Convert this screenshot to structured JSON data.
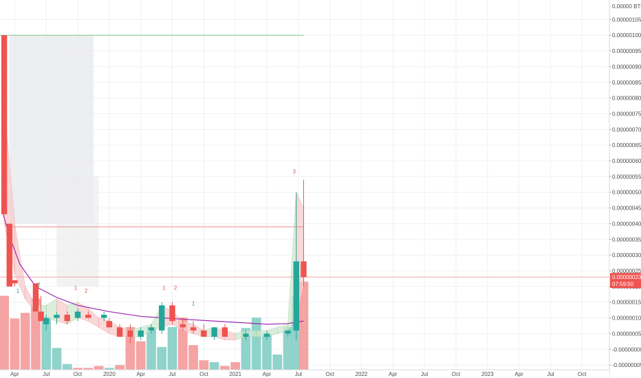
{
  "chart_data": {
    "type": "candlestick",
    "axis_header": "0.00000 BTC 10",
    "y_tick_labels": [
      {
        "value": 1.05e-06,
        "label": "0.00000105"
      },
      {
        "value": 1e-06,
        "label": "0.00000100"
      },
      {
        "value": 9.5e-07,
        "label": "0.00000095"
      },
      {
        "value": 9e-07,
        "label": "0.00000090"
      },
      {
        "value": 8.5e-07,
        "label": "0.00000085"
      },
      {
        "value": 8e-07,
        "label": "0.00000080"
      },
      {
        "value": 7.5e-07,
        "label": "0.00000075"
      },
      {
        "value": 7e-07,
        "label": "0.00000070"
      },
      {
        "value": 6.5e-07,
        "label": "0.00000065"
      },
      {
        "value": 6e-07,
        "label": "0.00000060"
      },
      {
        "value": 5.5e-07,
        "label": "0.00000055"
      },
      {
        "value": 5e-07,
        "label": "0.00000050"
      },
      {
        "value": 4.5e-07,
        "label": "0.00000045"
      },
      {
        "value": 4e-07,
        "label": "0.00000040"
      },
      {
        "value": 3.5e-07,
        "label": "0.00000035"
      },
      {
        "value": 3e-07,
        "label": "0.00000030"
      },
      {
        "value": 2.5e-07,
        "label": "0.00000025"
      },
      {
        "value": 2e-07,
        "label": "0.00000020"
      },
      {
        "value": 1.5e-07,
        "label": "0.00000015"
      },
      {
        "value": 1e-07,
        "label": "0.00000010"
      },
      {
        "value": 5e-08,
        "label": "0.00000005"
      },
      {
        "value": -0.0,
        "label": "-0.00000000"
      },
      {
        "value": -5e-08,
        "label": "-0.00000005"
      }
    ],
    "ylim": [
      -6.5e-08,
      1.112e-06
    ],
    "x_tick_labels": [
      "Apr",
      "Jul",
      "Oct",
      "2020",
      "Apr",
      "Jul",
      "Oct",
      "2021",
      "Apr",
      "Jul",
      "Oct",
      "2022",
      "Apr",
      "Jul",
      "Oct",
      "2023",
      "Apr",
      "Jul",
      "Oct"
    ],
    "x_tick_months": [
      3,
      6,
      9,
      12,
      15,
      18,
      21,
      24,
      27,
      30,
      33,
      36,
      39,
      42,
      45,
      48,
      51,
      54,
      57
    ],
    "xlim": [
      1.6,
      59.6
    ],
    "bar_period_months": 0.5,
    "candles": [
      {
        "t": 2.0,
        "o": 1e-06,
        "h": 1e-06,
        "l": 4.3e-07,
        "c": 4.3e-07
      },
      {
        "t": 2.5,
        "o": 4e-07,
        "h": 4e-07,
        "l": 2e-07,
        "c": 2e-07
      },
      {
        "t": 3.0,
        "o": 2.2e-07,
        "h": 2.2e-07,
        "l": 2e-07,
        "c": 2.1e-07
      },
      {
        "t": 5.0,
        "o": 2.1e-07,
        "h": 2.1e-07,
        "l": 1.2e-07,
        "c": 1.2e-07
      },
      {
        "t": 5.5,
        "o": 1.2e-07,
        "h": 1.7e-07,
        "l": 9e-08,
        "c": 9e-08
      },
      {
        "t": 6.0,
        "o": 8e-08,
        "h": 1.1e-07,
        "l": 6e-08,
        "c": 1e-07
      },
      {
        "t": 7.0,
        "o": 1e-07,
        "h": 1.2e-07,
        "l": 8e-08,
        "c": 1.1e-07
      },
      {
        "t": 8.0,
        "o": 1.1e-07,
        "h": 1.2e-07,
        "l": 8e-08,
        "c": 9e-08
      },
      {
        "t": 9.0,
        "o": 1e-07,
        "h": 1.3e-07,
        "l": 9e-08,
        "c": 1.2e-07
      },
      {
        "t": 10.0,
        "o": 1.1e-07,
        "h": 1.2e-07,
        "l": 1e-07,
        "c": 1e-07
      },
      {
        "t": 11.5,
        "o": 1e-07,
        "h": 1.2e-07,
        "l": 9e-08,
        "c": 1.1e-07
      },
      {
        "t": 12.0,
        "o": 9e-08,
        "h": 1e-07,
        "l": 7e-08,
        "c": 7e-08
      },
      {
        "t": 13.0,
        "o": 7e-08,
        "h": 8e-08,
        "l": 5e-08,
        "c": 4e-08
      },
      {
        "t": 14.0,
        "o": 6e-08,
        "h": 8e-08,
        "l": 2e-08,
        "c": 4e-08
      },
      {
        "t": 15.0,
        "o": 4e-08,
        "h": 7e-08,
        "l": 3e-08,
        "c": 6e-08
      },
      {
        "t": 16.0,
        "o": 6e-08,
        "h": 8e-08,
        "l": 5e-08,
        "c": 7e-08
      },
      {
        "t": 17.0,
        "o": 6e-08,
        "h": 1.5e-07,
        "l": 5e-08,
        "c": 1.4e-07
      },
      {
        "t": 18.0,
        "o": 1.4e-07,
        "h": 1.5e-07,
        "l": 8e-08,
        "c": 9e-08
      },
      {
        "t": 19.0,
        "o": 8e-08,
        "h": 1e-07,
        "l": 6e-08,
        "c": 7e-08
      },
      {
        "t": 20.0,
        "o": 7e-08,
        "h": 9e-08,
        "l": 5e-08,
        "c": 6e-08
      },
      {
        "t": 21.0,
        "o": 6e-08,
        "h": 8e-08,
        "l": 4e-08,
        "c": 4e-08
      },
      {
        "t": 22.0,
        "o": 4e-08,
        "h": 6e-08,
        "l": 3e-08,
        "c": 7e-08
      },
      {
        "t": 23.0,
        "o": 7e-08,
        "h": 8e-08,
        "l": 4e-08,
        "c": 4e-08
      },
      {
        "t": 25.0,
        "o": 4e-08,
        "h": 6e-08,
        "l": 3e-08,
        "c": 5e-08
      },
      {
        "t": 27.0,
        "o": 4e-08,
        "h": 6e-08,
        "l": 3e-08,
        "c": 5e-08
      },
      {
        "t": 29.0,
        "o": 5e-08,
        "h": 6e-08,
        "l": 4e-08,
        "c": 6e-08
      },
      {
        "t": 29.8,
        "o": 6e-08,
        "h": 5e-07,
        "l": 3e-08,
        "c": 2.8e-07
      },
      {
        "t": 30.5,
        "o": 2.8e-07,
        "h": 5.4e-07,
        "l": 2e-07,
        "c": 2.3e-07
      }
    ],
    "volume_bars": [
      {
        "t": 1.6,
        "v": 0.42,
        "color": "red"
      },
      {
        "t": 2.0,
        "v": 0.78,
        "color": "red"
      },
      {
        "t": 3.0,
        "v": 0.54,
        "color": "red"
      },
      {
        "t": 4.0,
        "v": 0.6,
        "color": "red"
      },
      {
        "t": 5.0,
        "v": 0.75,
        "color": "red"
      },
      {
        "t": 6.0,
        "v": 0.55,
        "color": "teal"
      },
      {
        "t": 7.0,
        "v": 0.23,
        "color": "teal"
      },
      {
        "t": 8.0,
        "v": 0.06,
        "color": "teal"
      },
      {
        "t": 9.0,
        "v": 0.02,
        "color": "red"
      },
      {
        "t": 10.0,
        "v": 0.02,
        "color": "red"
      },
      {
        "t": 11.0,
        "v": 0.04,
        "color": "red"
      },
      {
        "t": 12.0,
        "v": 0.02,
        "color": "teal"
      },
      {
        "t": 13.0,
        "v": 0.05,
        "color": "red"
      },
      {
        "t": 14.0,
        "v": 0.45,
        "color": "red"
      },
      {
        "t": 15.0,
        "v": 0.3,
        "color": "red"
      },
      {
        "t": 16.0,
        "v": 0.45,
        "color": "teal"
      },
      {
        "t": 17.0,
        "v": 0.24,
        "color": "teal"
      },
      {
        "t": 18.0,
        "v": 0.45,
        "color": "teal"
      },
      {
        "t": 19.0,
        "v": 0.55,
        "color": "red"
      },
      {
        "t": 20.0,
        "v": 0.26,
        "color": "red"
      },
      {
        "t": 21.0,
        "v": 0.1,
        "color": "red"
      },
      {
        "t": 22.0,
        "v": 0.08,
        "color": "teal"
      },
      {
        "t": 23.0,
        "v": 0.04,
        "color": "red"
      },
      {
        "t": 24.0,
        "v": 0.08,
        "color": "red"
      },
      {
        "t": 25.0,
        "v": 0.44,
        "color": "teal"
      },
      {
        "t": 26.0,
        "v": 0.55,
        "color": "teal"
      },
      {
        "t": 27.0,
        "v": 0.38,
        "color": "teal"
      },
      {
        "t": 28.0,
        "v": 0.16,
        "color": "teal"
      },
      {
        "t": 29.0,
        "v": 0.45,
        "color": "teal"
      },
      {
        "t": 29.8,
        "v": 0.78,
        "color": "teal"
      },
      {
        "t": 30.5,
        "v": 0.93,
        "color": "red"
      }
    ],
    "volume_max_value": 1,
    "moving_average": [
      {
        "t": 1.9,
        "v": 4.3e-07
      },
      {
        "t": 2.5,
        "v": 3.6e-07
      },
      {
        "t": 3.5,
        "v": 2.7e-07
      },
      {
        "t": 5.0,
        "v": 2e-07
      },
      {
        "t": 7.0,
        "v": 1.65e-07
      },
      {
        "t": 9.0,
        "v": 1.4e-07
      },
      {
        "t": 12.0,
        "v": 1.2e-07
      },
      {
        "t": 15.0,
        "v": 1.05e-07
      },
      {
        "t": 18.0,
        "v": 9.8e-08
      },
      {
        "t": 21.0,
        "v": 9.2e-08
      },
      {
        "t": 24.0,
        "v": 8.6e-08
      },
      {
        "t": 27.0,
        "v": 8e-08
      },
      {
        "t": 29.0,
        "v": 8.2e-08
      },
      {
        "t": 30.5,
        "v": 9e-08
      }
    ],
    "cloud_band": [
      {
        "t": 2.0,
        "a": 7.8e-07,
        "b": 4e-07
      },
      {
        "t": 3.0,
        "a": 4e-07,
        "b": 2.4e-07
      },
      {
        "t": 4.0,
        "a": 2e-07,
        "b": 1.6e-07
      },
      {
        "t": 5.0,
        "a": 1.4e-07,
        "b": 1.2e-07
      },
      {
        "t": 6.0,
        "a": 1.4e-07,
        "b": 1e-07
      },
      {
        "t": 7.0,
        "a": 1.6e-07,
        "b": 9e-08
      },
      {
        "t": 8.0,
        "a": 1.4e-07,
        "b": 8e-08
      },
      {
        "t": 9.0,
        "a": 1.5e-07,
        "b": 1e-07
      },
      {
        "t": 10.0,
        "a": 1.3e-07,
        "b": 9e-08
      },
      {
        "t": 11.0,
        "a": 1e-07,
        "b": 7e-08
      },
      {
        "t": 12.0,
        "a": 9e-08,
        "b": 5e-08
      },
      {
        "t": 13.0,
        "a": 7e-08,
        "b": 4e-08
      },
      {
        "t": 14.0,
        "a": 6e-08,
        "b": 4e-08
      },
      {
        "t": 15.0,
        "a": 7e-08,
        "b": 4e-08
      },
      {
        "t": 16.0,
        "a": 8e-08,
        "b": 6e-08
      },
      {
        "t": 17.0,
        "a": 1.4e-07,
        "b": 7e-08
      },
      {
        "t": 18.0,
        "a": 1.2e-07,
        "b": 8e-08
      },
      {
        "t": 19.0,
        "a": 9e-08,
        "b": 6e-08
      },
      {
        "t": 20.0,
        "a": 8e-08,
        "b": 5e-08
      },
      {
        "t": 21.0,
        "a": 6e-08,
        "b": 4e-08
      },
      {
        "t": 22.0,
        "a": 7e-08,
        "b": 4e-08
      },
      {
        "t": 23.0,
        "a": 6e-08,
        "b": 3e-08
      },
      {
        "t": 24.0,
        "a": 5e-08,
        "b": 3e-08
      },
      {
        "t": 25.0,
        "a": 6e-08,
        "b": 4e-08
      },
      {
        "t": 26.0,
        "a": 6e-08,
        "b": 4e-08
      },
      {
        "t": 27.0,
        "a": 6e-08,
        "b": 4e-08
      },
      {
        "t": 28.0,
        "a": 7e-08,
        "b": 5e-08
      },
      {
        "t": 29.0,
        "a": 8e-08,
        "b": 6e-08
      },
      {
        "t": 29.8,
        "a": 5e-07,
        "b": 1e-07
      },
      {
        "t": 30.5,
        "a": 4.5e-07,
        "b": 2e-07
      }
    ],
    "grey_zone_1": {
      "t0": 2.5,
      "t1": 10.5,
      "top": 1e-06,
      "bottom": 4e-07
    },
    "grey_zone_2": {
      "t0": 7.0,
      "t1": 11.0,
      "top": 5.5e-07,
      "bottom": 2e-07
    },
    "horizontal_levels": [
      {
        "value": 1e-06,
        "t0": 1.6,
        "t1": 30.5,
        "color": "#7cc38a"
      },
      {
        "value": 3.9e-07,
        "t0": 2.5,
        "t1": 30.5,
        "color": "#f08a8a"
      },
      {
        "value": 2.3e-07,
        "t0": 1.6,
        "t1": 59.6,
        "color": "#f5a3a3"
      }
    ],
    "signals": [
      {
        "t": 3.3,
        "v": 1.8e-07,
        "text": "1",
        "color": "#26a69a"
      },
      {
        "t": 5.3,
        "v": 2e-07,
        "text": "2",
        "color": "#26a69a"
      },
      {
        "t": 8.8,
        "v": 1.9e-07,
        "text": "1",
        "color": "#ef5350"
      },
      {
        "t": 9.8,
        "v": 1.8e-07,
        "text": "2",
        "color": "#ef5350"
      },
      {
        "t": 17.2,
        "v": 1.9e-07,
        "text": "1",
        "color": "#ef5350"
      },
      {
        "t": 18.3,
        "v": 1.9e-07,
        "text": "2",
        "color": "#ef5350"
      },
      {
        "t": 20.0,
        "v": 1.4e-07,
        "text": "1",
        "color": "#26a69a"
      },
      {
        "t": 29.6,
        "v": 5.6e-07,
        "text": "3",
        "color": "#ef5350"
      }
    ],
    "price_tag": {
      "value": 2.3e-07,
      "label": "0.00000023",
      "countdown": "07:59:50",
      "color": "#ef5350"
    },
    "colors": {
      "up": "#26a69a",
      "down": "#ef5350",
      "vol_up": "#8fd3cb",
      "vol_down": "#f5a3a3",
      "ma": "#9c27b0",
      "grid": "#eef0f3"
    }
  }
}
